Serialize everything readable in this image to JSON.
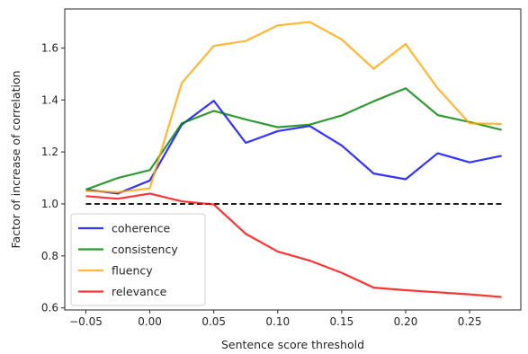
{
  "chart_data": {
    "type": "line",
    "title": "",
    "xlabel": "Sentence score threshold",
    "ylabel": "Factor of increase of correlation",
    "xlim": [
      -0.0665,
      0.29
    ],
    "ylim": [
      0.592,
      1.75
    ],
    "x_ticks": [
      -0.05,
      0.0,
      0.05,
      0.1,
      0.15,
      0.2,
      0.25
    ],
    "x_tick_labels": [
      "−0.05",
      "0.00",
      "0.05",
      "0.10",
      "0.15",
      "0.20",
      "0.25"
    ],
    "y_ticks": [
      0.6,
      0.8,
      1.0,
      1.2,
      1.4,
      1.6
    ],
    "y_tick_labels": [
      "0.6",
      "0.8",
      "1.0",
      "1.2",
      "1.4",
      "1.6"
    ],
    "grid": false,
    "legend_position": "lower-left",
    "x": [
      -0.05,
      -0.025,
      0.0,
      0.025,
      0.05,
      0.075,
      0.1,
      0.125,
      0.15,
      0.175,
      0.2,
      0.225,
      0.25,
      0.275
    ],
    "series": [
      {
        "name": "coherence",
        "color": "#0000ff",
        "values": [
          1.055,
          1.04,
          1.09,
          1.305,
          1.397,
          1.235,
          1.28,
          1.3,
          1.225,
          1.117,
          1.095,
          1.195,
          1.16,
          1.185
        ]
      },
      {
        "name": "consistency",
        "color": "#008000",
        "values": [
          1.055,
          1.1,
          1.13,
          1.31,
          1.358,
          1.325,
          1.295,
          1.305,
          1.34,
          1.395,
          1.445,
          1.342,
          1.315,
          1.285
        ]
      },
      {
        "name": "fluency",
        "color": "#ffa500",
        "values": [
          1.05,
          1.045,
          1.06,
          1.465,
          1.608,
          1.627,
          1.687,
          1.7,
          1.633,
          1.52,
          1.615,
          1.445,
          1.31,
          1.308
        ]
      },
      {
        "name": "relevance",
        "color": "#ff0000",
        "values": [
          1.03,
          1.02,
          1.04,
          1.01,
          0.998,
          0.885,
          0.817,
          0.782,
          0.735,
          0.678,
          0.668,
          0.66,
          0.652,
          0.642
        ]
      }
    ],
    "reference_line": {
      "y": 1.0,
      "style": "dashed",
      "color": "#000000"
    }
  }
}
